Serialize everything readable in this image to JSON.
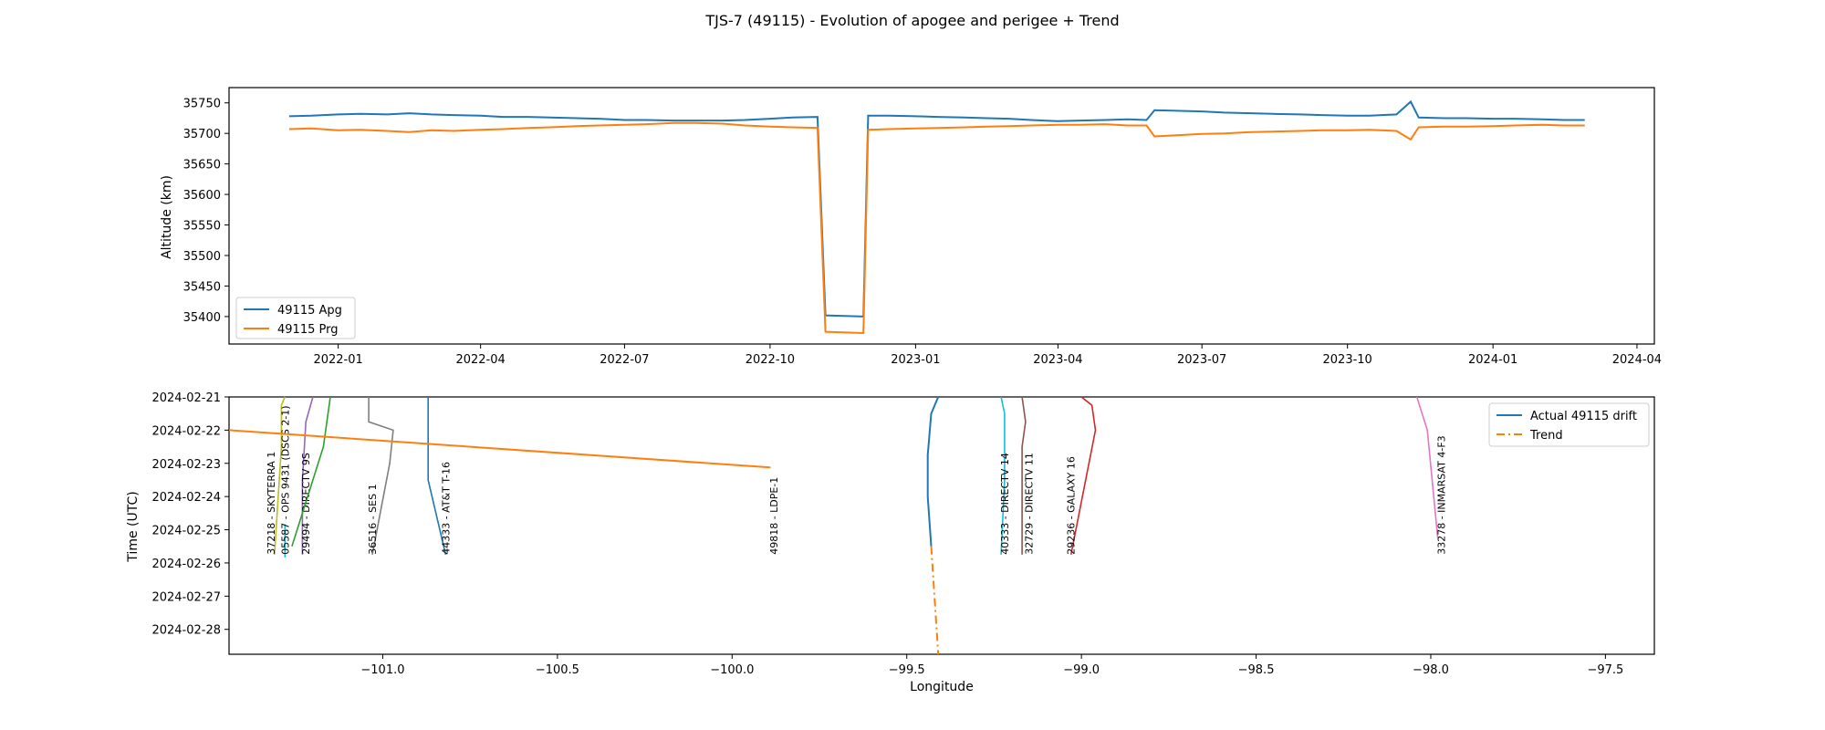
{
  "figure_title": "TJS-7 (49115) - Evolution of apogee and perigee + Trend",
  "chart_data": [
    {
      "type": "line",
      "title": "",
      "xlabel": "",
      "ylabel": "Altitude (km)",
      "x_type": "date",
      "xlim": [
        "2021-10-24",
        "2024-04-12"
      ],
      "ylim": [
        35355,
        35775
      ],
      "x_ticks": [
        "2022-01",
        "2022-04",
        "2022-07",
        "2022-10",
        "2023-01",
        "2023-04",
        "2023-07",
        "2023-10",
        "2024-01",
        "2024-04"
      ],
      "y_ticks": [
        35400,
        35450,
        35500,
        35550,
        35600,
        35650,
        35700,
        35750
      ],
      "grid": false,
      "legend": "lower-left",
      "series": [
        {
          "name": "49115 Apg",
          "color": "#1f77b4",
          "x": [
            "2021-12-01",
            "2021-12-15",
            "2022-01-01",
            "2022-01-15",
            "2022-02-01",
            "2022-02-15",
            "2022-03-01",
            "2022-03-15",
            "2022-04-01",
            "2022-04-15",
            "2022-05-01",
            "2022-05-15",
            "2022-06-01",
            "2022-06-15",
            "2022-07-01",
            "2022-07-15",
            "2022-08-01",
            "2022-08-15",
            "2022-09-01",
            "2022-09-15",
            "2022-10-01",
            "2022-10-15",
            "2022-10-31",
            "2022-11-05",
            "2022-11-29",
            "2022-12-02",
            "2022-12-15",
            "2023-01-01",
            "2023-01-15",
            "2023-02-01",
            "2023-02-15",
            "2023-03-01",
            "2023-03-15",
            "2023-04-01",
            "2023-04-15",
            "2023-05-01",
            "2023-05-15",
            "2023-05-27",
            "2023-06-01",
            "2023-06-15",
            "2023-07-01",
            "2023-07-15",
            "2023-08-01",
            "2023-08-15",
            "2023-09-01",
            "2023-09-15",
            "2023-10-01",
            "2023-10-15",
            "2023-11-01",
            "2023-11-10",
            "2023-11-15",
            "2023-12-01",
            "2023-12-15",
            "2024-01-01",
            "2024-01-15",
            "2024-02-01",
            "2024-02-15",
            "2024-02-28"
          ],
          "y": [
            35728,
            35729,
            35731,
            35732,
            35731,
            35733,
            35731,
            35730,
            35729,
            35727,
            35727,
            35726,
            35725,
            35724,
            35722,
            35722,
            35721,
            35721,
            35721,
            35722,
            35724,
            35726,
            35727,
            35402,
            35400,
            35729,
            35729,
            35728,
            35727,
            35726,
            35725,
            35724,
            35722,
            35720,
            35721,
            35722,
            35723,
            35722,
            35738,
            35737,
            35736,
            35734,
            35733,
            35732,
            35731,
            35730,
            35729,
            35729,
            35731,
            35752,
            35726,
            35725,
            35725,
            35724,
            35724,
            35723,
            35722,
            35722
          ]
        },
        {
          "name": "49115 Prg",
          "color": "#ff7f0e",
          "x": [
            "2021-12-01",
            "2021-12-15",
            "2022-01-01",
            "2022-01-15",
            "2022-02-01",
            "2022-02-15",
            "2022-03-01",
            "2022-03-15",
            "2022-04-01",
            "2022-04-15",
            "2022-05-01",
            "2022-05-15",
            "2022-06-01",
            "2022-06-15",
            "2022-07-01",
            "2022-07-15",
            "2022-08-01",
            "2022-08-15",
            "2022-09-01",
            "2022-09-15",
            "2022-10-01",
            "2022-10-15",
            "2022-10-31",
            "2022-11-05",
            "2022-11-29",
            "2022-12-02",
            "2022-12-15",
            "2023-01-01",
            "2023-01-15",
            "2023-02-01",
            "2023-02-15",
            "2023-03-01",
            "2023-03-15",
            "2023-04-01",
            "2023-04-15",
            "2023-05-01",
            "2023-05-15",
            "2023-05-27",
            "2023-06-01",
            "2023-06-15",
            "2023-07-01",
            "2023-07-15",
            "2023-08-01",
            "2023-08-15",
            "2023-09-01",
            "2023-09-15",
            "2023-10-01",
            "2023-10-15",
            "2023-11-01",
            "2023-11-10",
            "2023-11-15",
            "2023-12-01",
            "2023-12-15",
            "2024-01-01",
            "2024-01-15",
            "2024-02-01",
            "2024-02-15",
            "2024-02-28"
          ],
          "y": [
            35707,
            35708,
            35705,
            35706,
            35704,
            35702,
            35705,
            35704,
            35706,
            35707,
            35709,
            35710,
            35712,
            35713,
            35714,
            35715,
            35717,
            35717,
            35716,
            35713,
            35711,
            35710,
            35709,
            35375,
            35373,
            35706,
            35707,
            35708,
            35709,
            35710,
            35711,
            35712,
            35713,
            35714,
            35714,
            35715,
            35713,
            35713,
            35695,
            35697,
            35699,
            35700,
            35702,
            35703,
            35704,
            35705,
            35705,
            35706,
            35704,
            35690,
            35710,
            35711,
            35711,
            35712,
            35713,
            35714,
            35713,
            35713
          ]
        }
      ]
    },
    {
      "type": "line",
      "title": "",
      "xlabel": "Longitude",
      "ylabel": "Time (UTC)",
      "x_type": "number",
      "y_type": "date",
      "y_inverted": true,
      "xlim": [
        -101.44,
        -97.36
      ],
      "ylim": [
        "2024-02-21 00:00",
        "2024-02-28 18:00"
      ],
      "x_ticks": [
        -101.0,
        -100.5,
        -100.0,
        -99.5,
        -99.0,
        -98.5,
        -98.0,
        -97.5
      ],
      "x_tick_labels": [
        "−101.0",
        "−100.5",
        "−100.0",
        "−99.5",
        "−99.0",
        "−98.5",
        "−98.0",
        "−97.5"
      ],
      "y_ticks": [
        "2024-02-21",
        "2024-02-22",
        "2024-02-23",
        "2024-02-24",
        "2024-02-25",
        "2024-02-26",
        "2024-02-27",
        "2024-02-28"
      ],
      "grid": false,
      "legend": "upper-right",
      "series": [
        {
          "name": "Actual 49115 drift",
          "color": "#1f77b4",
          "style": "solid",
          "x": [
            -99.41,
            -99.43,
            -99.44,
            -99.44,
            -99.43
          ],
          "y": [
            "2024-02-21 00:00",
            "2024-02-21 12:00",
            "2024-02-22 18:00",
            "2024-02-24 00:00",
            "2024-02-25 12:00"
          ]
        },
        {
          "name": "Trend",
          "color": "#ff7f0e",
          "style": "dashdot",
          "x": [
            -99.43,
            -99.41
          ],
          "y": [
            "2024-02-25 12:00",
            "2024-02-28 18:00"
          ]
        },
        {
          "name": "",
          "color": "#ff7f0e",
          "style": "solid",
          "x": [
            -101.44,
            -99.89
          ],
          "y": [
            "2024-02-22 00:00",
            "2024-02-23 03:00"
          ]
        }
      ],
      "satellite_tracks": [
        {
          "label": "37218 - SKYTERRA 1",
          "color": "#bcbd22",
          "label_x": -101.32,
          "x": [
            -101.28,
            -101.29,
            -101.29,
            -101.31
          ],
          "y": [
            "2024-02-21 00:00",
            "2024-02-21 06:00",
            "2024-02-22 12:00",
            "2024-02-25 18:00"
          ]
        },
        {
          "label": "05587 - OPS 9431 (DSCS 2-1)",
          "color": "#17becf",
          "label_x": -101.28,
          "x": [
            -101.28,
            -101.28
          ],
          "y": [
            "2024-02-24 20:00",
            "2024-02-25 20:00"
          ]
        },
        {
          "label": "29494 - DIRECTV 9S",
          "color": "#9467bd",
          "label_x": -101.22,
          "x": [
            -101.2,
            -101.22,
            -101.23,
            -101.23
          ],
          "y": [
            "2024-02-21 00:00",
            "2024-02-21 18:00",
            "2024-02-23 12:00",
            "2024-02-25 18:00"
          ]
        },
        {
          "label": "",
          "color": "#2ca02c",
          "label_x": 0,
          "x": [
            -101.15,
            -101.17,
            -101.26
          ],
          "y": [
            "2024-02-21 00:00",
            "2024-02-22 12:00",
            "2024-02-25 12:00"
          ]
        },
        {
          "label": "36516 - SES 1",
          "color": "#7f7f7f",
          "label_x": -101.03,
          "x": [
            -101.04,
            -101.04,
            -100.97,
            -100.98,
            -101.03
          ],
          "y": [
            "2024-02-21 00:00",
            "2024-02-21 18:00",
            "2024-02-22 00:00",
            "2024-02-23 00:00",
            "2024-02-25 18:00"
          ]
        },
        {
          "label": "44333 - AT&T T-16",
          "color": "#1f77b4",
          "label_x": -100.82,
          "x": [
            -100.87,
            -100.87,
            -100.82
          ],
          "y": [
            "2024-02-21 00:00",
            "2024-02-23 12:00",
            "2024-02-25 18:00"
          ]
        },
        {
          "label": "49818 - LDPE-1",
          "color": "#ff7f0e",
          "label_x": -99.88,
          "x": [],
          "y": []
        },
        {
          "label": "40333 - DIRECTV 14",
          "color": "#17becf",
          "label_x": -99.22,
          "x": [
            -99.23,
            -99.22,
            -99.22,
            -99.23
          ],
          "y": [
            "2024-02-21 00:00",
            "2024-02-21 12:00",
            "2024-02-23 12:00",
            "2024-02-25 18:00"
          ]
        },
        {
          "label": "32729 - DIRECTV 11",
          "color": "#8c564b",
          "label_x": -99.15,
          "x": [
            -99.17,
            -99.16,
            -99.17,
            -99.17
          ],
          "y": [
            "2024-02-21 00:00",
            "2024-02-21 18:00",
            "2024-02-22 12:00",
            "2024-02-25 18:00"
          ]
        },
        {
          "label": "29236 - GALAXY 16",
          "color": "#d62728",
          "label_x": -99.03,
          "x": [
            -99.0,
            -98.97,
            -98.96,
            -99.03
          ],
          "y": [
            "2024-02-21 00:00",
            "2024-02-21 06:00",
            "2024-02-22 00:00",
            "2024-02-25 18:00"
          ]
        },
        {
          "label": "33278 - INMARSAT 4-F3",
          "color": "#e377c2",
          "label_x": -97.97,
          "x": [
            -98.04,
            -98.01,
            -97.98
          ],
          "y": [
            "2024-02-21 00:00",
            "2024-02-22 00:00",
            "2024-02-25 06:00"
          ]
        }
      ]
    }
  ]
}
